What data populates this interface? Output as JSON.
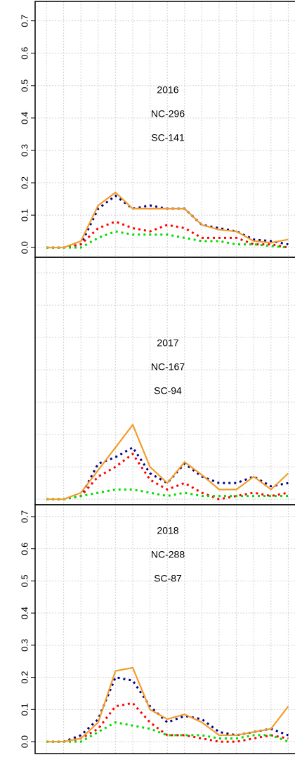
{
  "chart_data": [
    {
      "type": "line",
      "annotations": [
        "2016",
        "NC-296",
        "SC-141"
      ],
      "x": [
        1,
        2,
        3,
        4,
        5,
        6,
        7,
        8,
        9,
        10,
        11,
        12,
        13,
        14,
        15
      ],
      "xlim": [
        0.35,
        15.39
      ],
      "ylim": [
        -0.03,
        0.76
      ],
      "yticks": [
        {
          "value": 0,
          "label": "0.0"
        },
        0.1,
        0.2,
        0.3,
        0.4,
        0.5,
        0.6,
        0.7
      ],
      "y_axis_labels": true,
      "grid": true,
      "series": [
        {
          "color": "#00008b",
          "dash": true,
          "values": [
            0,
            0,
            0.01,
            0.12,
            0.16,
            0.12,
            0.13,
            0.12,
            0.12,
            0.07,
            0.06,
            0.05,
            0.025,
            0.02,
            0.01
          ]
        },
        {
          "color": "#ff0000",
          "dash": true,
          "values": [
            0,
            0,
            0.01,
            0.06,
            0.08,
            0.06,
            0.05,
            0.07,
            0.06,
            0.03,
            0.03,
            0.03,
            0.01,
            0.01,
            0
          ]
        },
        {
          "color": "#00dd00",
          "dash": true,
          "values": [
            0,
            0,
            0,
            0.03,
            0.05,
            0.04,
            0.04,
            0.04,
            0.03,
            0.02,
            0.02,
            0.01,
            0.01,
            0.005,
            0
          ]
        },
        {
          "color": "#f39c2a",
          "dash": false,
          "values": [
            0,
            0,
            0.02,
            0.13,
            0.17,
            0.12,
            0.12,
            0.12,
            0.12,
            0.07,
            0.055,
            0.05,
            0.02,
            0.015,
            0.025
          ]
        }
      ]
    },
    {
      "type": "line",
      "annotations": [
        "2017",
        "NC-167",
        "SC-94"
      ],
      "x": [
        1,
        2,
        3,
        4,
        5,
        6,
        7,
        8,
        9,
        10,
        11,
        12,
        13,
        14,
        15
      ],
      "xlim": [
        0.35,
        15.39
      ],
      "ylim": [
        -0.017,
        0.748
      ],
      "yticks": [
        {
          "value": 0,
          "label": "0.0"
        },
        0.1,
        0.2,
        0.3,
        0.4,
        0.5,
        0.6,
        0.7
      ],
      "y_axis_labels": false,
      "grid": true,
      "series": [
        {
          "color": "#00008b",
          "dash": true,
          "values": [
            0,
            0,
            0.01,
            0.11,
            0.13,
            0.16,
            0.08,
            0.05,
            0.11,
            0.07,
            0.05,
            0.05,
            0.07,
            0.04,
            0.05
          ]
        },
        {
          "color": "#ff0000",
          "dash": true,
          "values": [
            0,
            0,
            0.01,
            0.07,
            0.1,
            0.14,
            0.06,
            0.03,
            0.05,
            0.02,
            0,
            0.01,
            0.02,
            0.01,
            0.02
          ]
        },
        {
          "color": "#00dd00",
          "dash": true,
          "values": [
            0,
            0,
            0.01,
            0.02,
            0.03,
            0.03,
            0.02,
            0.01,
            0.02,
            0.01,
            0.01,
            0.01,
            0.01,
            0.01,
            0.01
          ]
        },
        {
          "color": "#f39c2a",
          "dash": false,
          "values": [
            0,
            0,
            0.02,
            0.09,
            0.16,
            0.23,
            0.1,
            0.05,
            0.115,
            0.075,
            0.03,
            0.03,
            0.07,
            0.03,
            0.08
          ]
        }
      ]
    },
    {
      "type": "line",
      "annotations": [
        "2018",
        "NC-288",
        "SC-87"
      ],
      "x": [
        1,
        2,
        3,
        4,
        5,
        6,
        7,
        8,
        9,
        10,
        11,
        12,
        13,
        14,
        15
      ],
      "xlim": [
        0.35,
        15.39
      ],
      "ylim": [
        -0.037,
        0.737
      ],
      "yticks": [
        {
          "value": 0,
          "label": "0.0"
        },
        0.1,
        0.2,
        0.3,
        0.4,
        0.5,
        0.6,
        0.7
      ],
      "y_axis_labels": true,
      "grid": true,
      "series": [
        {
          "color": "#00008b",
          "dash": true,
          "values": [
            0,
            0,
            0.02,
            0.07,
            0.2,
            0.19,
            0.11,
            0.06,
            0.08,
            0.07,
            0.03,
            0.02,
            0.03,
            0.04,
            0.02
          ]
        },
        {
          "color": "#ff0000",
          "dash": true,
          "values": [
            0,
            0,
            0.01,
            0.04,
            0.11,
            0.12,
            0.06,
            0.02,
            0.02,
            0.01,
            0,
            0,
            0.01,
            0.02,
            0.01
          ]
        },
        {
          "color": "#00dd00",
          "dash": true,
          "values": [
            0,
            0,
            0,
            0.03,
            0.06,
            0.05,
            0.04,
            0.02,
            0.02,
            0.02,
            0.01,
            0.01,
            0.02,
            0.02,
            0
          ]
        },
        {
          "color": "#f39c2a",
          "dash": false,
          "values": [
            0,
            0,
            0.01,
            0.06,
            0.22,
            0.23,
            0.1,
            0.07,
            0.085,
            0.06,
            0.02,
            0.02,
            0.03,
            0.04,
            0.11
          ]
        }
      ]
    }
  ]
}
